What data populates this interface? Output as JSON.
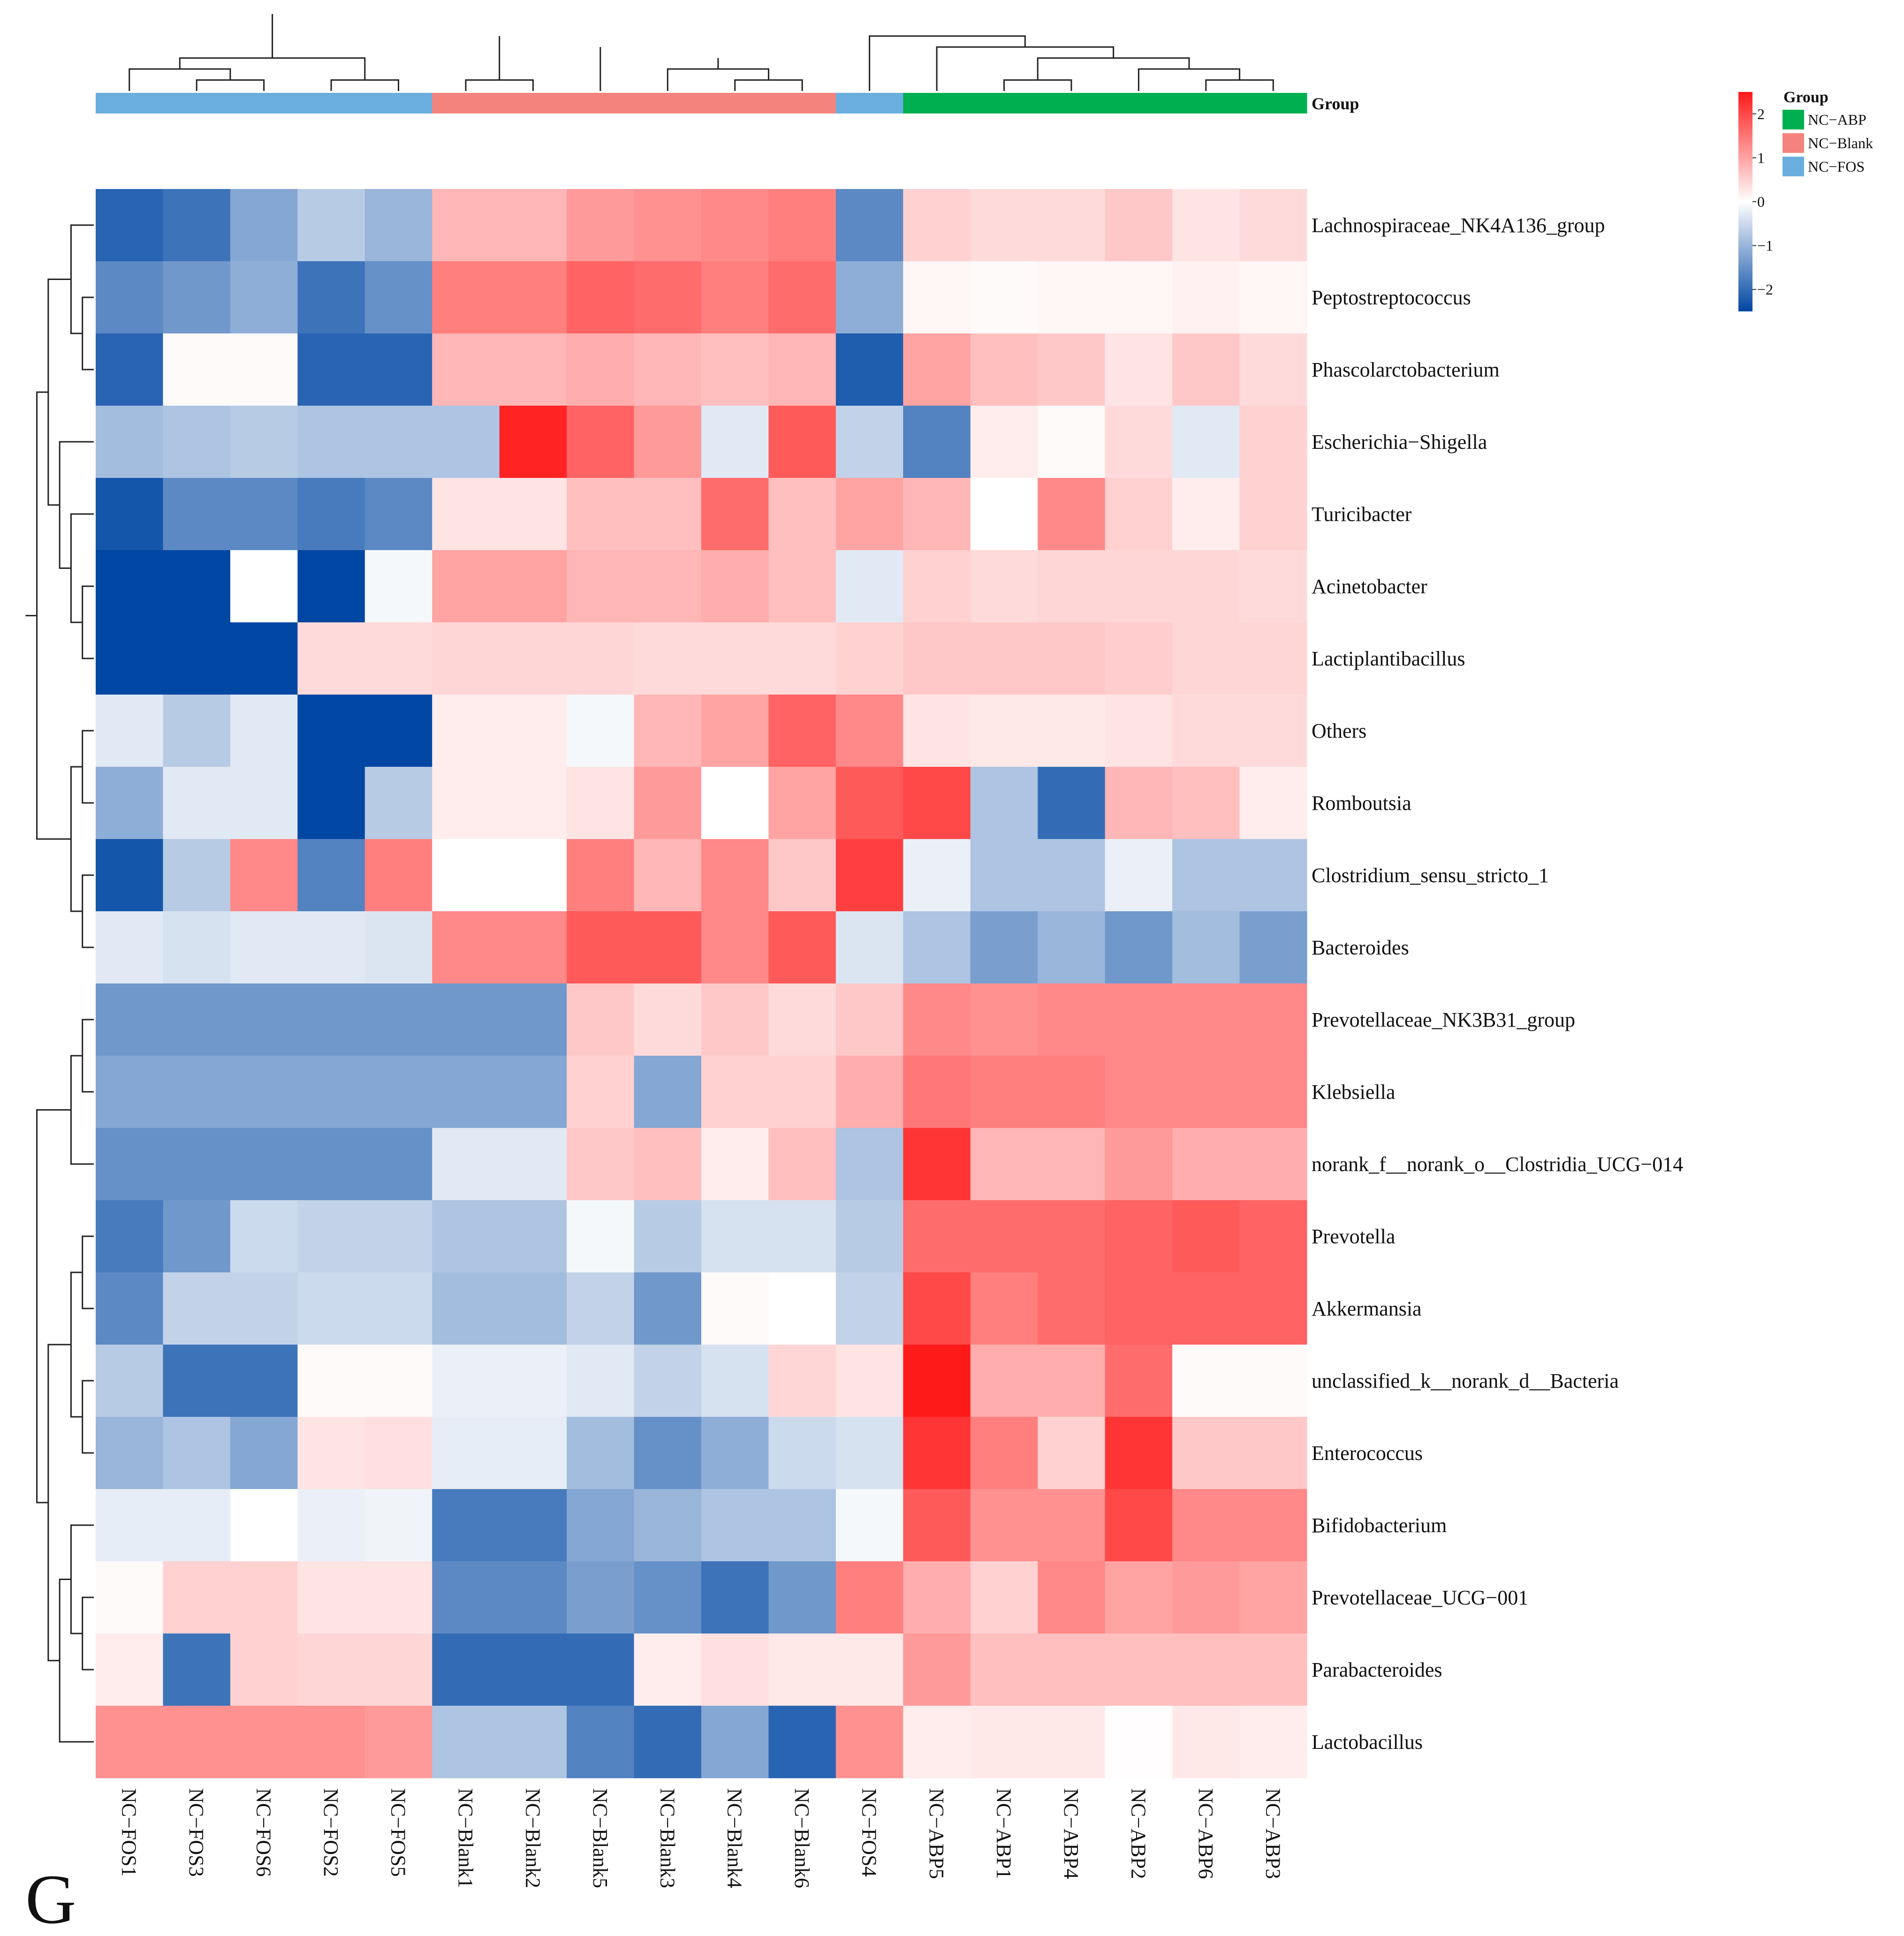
{
  "chart_data": {
    "type": "heatmap",
    "panel_letter": "G",
    "annotation_label": "Group",
    "legend_title": "Group",
    "groups": [
      {
        "name": "NC−ABP",
        "color": "#00b050"
      },
      {
        "name": "NC−Blank",
        "color": "#f4837d"
      },
      {
        "name": "NC−FOS",
        "color": "#6aaee0"
      }
    ],
    "color_scale": {
      "min": -2.5,
      "max": 2.5,
      "ticks": [
        "2",
        "1",
        "0",
        "−1",
        "−2"
      ],
      "tick_values": [
        2,
        1,
        0,
        -1,
        -2
      ],
      "low_color": "#0047a3",
      "mid_color": "#ffffff",
      "high_color": "#ff1a1a"
    },
    "columns": [
      "NC−FOS1",
      "NC−FOS3",
      "NC−FOS6",
      "NC−FOS2",
      "NC−FOS5",
      "NC−Blank1",
      "NC−Blank2",
      "NC−Blank5",
      "NC−Blank3",
      "NC−Blank4",
      "NC−Blank6",
      "NC−FOS4",
      "NC−ABP5",
      "NC−ABP1",
      "NC−ABP4",
      "NC−ABP2",
      "NC−ABP6",
      "NC−ABP3"
    ],
    "column_groups": [
      2,
      2,
      2,
      2,
      2,
      1,
      1,
      1,
      1,
      1,
      1,
      2,
      0,
      0,
      0,
      0,
      0,
      0
    ],
    "rows": [
      "Lachnospiraceae_NK4A136_group",
      "Peptostreptococcus",
      "Phascolarctobacterium",
      "Escherichia−Shigella",
      "Turicibacter",
      "Acinetobacter",
      "Lactiplantibacillus",
      "Others",
      "Romboutsia",
      "Clostridium_sensu_stricto_1",
      "Bacteroides",
      "Prevotellaceae_NK3B31_group",
      "Klebsiella",
      "norank_f__norank_o__Clostridia_UCG−014",
      "Prevotella",
      "Akkermansia",
      "unclassified_k__norank_d__Bacteria",
      "Enterococcus",
      "Bifidobacterium",
      "Prevotellaceae_UCG−001",
      "Parabacteroides",
      "Lactobacillus"
    ],
    "values": [
      [
        -2.1,
        -1.9,
        -1.2,
        -0.7,
        -1.0,
        0.8,
        0.8,
        1.1,
        1.2,
        1.3,
        1.4,
        -1.6,
        0.5,
        0.4,
        0.4,
        0.6,
        0.3,
        0.4
      ],
      [
        -1.6,
        -1.4,
        -1.1,
        -1.9,
        -1.5,
        1.4,
        1.4,
        1.7,
        1.6,
        1.4,
        1.6,
        -1.1,
        0.1,
        0.05,
        0.1,
        0.1,
        0.15,
        0.1
      ],
      [
        -2.1,
        0.05,
        0.05,
        -2.1,
        -2.1,
        0.8,
        0.8,
        0.9,
        0.8,
        0.7,
        0.8,
        -2.2,
        1.0,
        0.7,
        0.6,
        0.3,
        0.6,
        0.4
      ],
      [
        -0.9,
        -0.8,
        -0.7,
        -0.8,
        -0.8,
        -0.8,
        2.4,
        1.7,
        1.1,
        -0.3,
        1.8,
        -0.6,
        -1.7,
        0.2,
        0.05,
        0.4,
        -0.3,
        0.5
      ],
      [
        -2.3,
        -1.6,
        -1.6,
        -1.8,
        -1.6,
        0.3,
        0.3,
        0.7,
        0.7,
        1.6,
        0.7,
        1.0,
        0.8,
        0.0,
        1.3,
        0.5,
        0.2,
        0.5
      ],
      [
        -2.5,
        -2.5,
        0.0,
        -2.5,
        -0.1,
        1.0,
        1.0,
        0.8,
        0.8,
        0.9,
        0.7,
        -0.3,
        0.5,
        0.4,
        0.45,
        0.45,
        0.45,
        0.4
      ],
      [
        -2.5,
        -2.5,
        -2.5,
        0.4,
        0.4,
        0.45,
        0.45,
        0.45,
        0.4,
        0.4,
        0.4,
        0.5,
        0.6,
        0.6,
        0.6,
        0.55,
        0.45,
        0.45
      ],
      [
        -0.3,
        -0.7,
        -0.3,
        -2.5,
        -2.5,
        0.2,
        0.2,
        -0.1,
        0.8,
        1.0,
        1.7,
        1.3,
        0.3,
        0.25,
        0.25,
        0.3,
        0.4,
        0.4
      ],
      [
        -1.1,
        -0.3,
        -0.3,
        -2.5,
        -0.7,
        0.2,
        0.2,
        0.3,
        1.1,
        0.0,
        1.0,
        1.8,
        2.0,
        -0.8,
        -2.0,
        0.8,
        0.7,
        0.2
      ],
      [
        -2.3,
        -0.7,
        1.3,
        -1.7,
        1.4,
        0.0,
        0.0,
        1.4,
        0.8,
        1.3,
        0.6,
        2.1,
        -0.2,
        -0.8,
        -0.8,
        -0.2,
        -0.8,
        -0.8
      ],
      [
        -0.3,
        -0.4,
        -0.3,
        -0.3,
        -0.35,
        1.3,
        1.3,
        1.8,
        1.8,
        1.3,
        1.8,
        -0.35,
        -0.8,
        -1.3,
        -1.0,
        -1.4,
        -0.9,
        -1.3
      ],
      [
        -1.4,
        -1.4,
        -1.4,
        -1.4,
        -1.4,
        -1.4,
        -1.4,
        0.6,
        0.4,
        0.6,
        0.4,
        0.6,
        1.3,
        1.2,
        1.3,
        1.3,
        1.3,
        1.3
      ],
      [
        -1.2,
        -1.2,
        -1.2,
        -1.2,
        -1.2,
        -1.2,
        -1.2,
        0.5,
        -1.2,
        0.5,
        0.5,
        0.9,
        1.5,
        1.4,
        1.4,
        1.3,
        1.3,
        1.3
      ],
      [
        -1.5,
        -1.5,
        -1.5,
        -1.5,
        -1.5,
        -0.3,
        -0.3,
        0.6,
        0.7,
        0.2,
        0.7,
        -0.8,
        2.2,
        0.8,
        0.8,
        1.1,
        0.9,
        0.9
      ],
      [
        -1.8,
        -1.4,
        -0.5,
        -0.6,
        -0.6,
        -0.8,
        -0.8,
        -0.1,
        -0.7,
        -0.4,
        -0.4,
        -0.7,
        1.6,
        1.6,
        1.6,
        1.7,
        1.8,
        1.7
      ],
      [
        -1.6,
        -0.6,
        -0.6,
        -0.5,
        -0.5,
        -0.9,
        -0.9,
        -0.6,
        -1.4,
        0.05,
        0.0,
        -0.6,
        2.0,
        1.4,
        1.6,
        1.7,
        1.7,
        1.7
      ],
      [
        -0.7,
        -1.9,
        -1.9,
        0.05,
        0.05,
        -0.2,
        -0.2,
        -0.3,
        -0.6,
        -0.4,
        0.45,
        0.3,
        2.5,
        0.9,
        0.9,
        1.6,
        0.05,
        0.05
      ],
      [
        -1.0,
        -0.8,
        -1.2,
        0.3,
        0.35,
        -0.25,
        -0.25,
        -0.9,
        -1.5,
        -1.1,
        -0.5,
        -0.4,
        2.2,
        1.4,
        0.5,
        2.2,
        0.6,
        0.6
      ],
      [
        -0.25,
        -0.25,
        0.0,
        -0.2,
        -0.15,
        -1.8,
        -1.8,
        -1.2,
        -1.0,
        -0.8,
        -0.8,
        -0.1,
        1.8,
        1.2,
        1.2,
        2.0,
        1.3,
        1.3
      ],
      [
        0.05,
        0.5,
        0.5,
        0.3,
        0.3,
        -1.6,
        -1.6,
        -1.3,
        -1.5,
        -1.9,
        -1.4,
        1.4,
        0.9,
        0.5,
        1.3,
        1.0,
        1.1,
        1.0
      ],
      [
        0.2,
        -1.9,
        0.5,
        0.45,
        0.45,
        -2.0,
        -2.0,
        -2.0,
        0.2,
        0.35,
        0.25,
        0.25,
        1.1,
        0.7,
        0.7,
        0.7,
        0.7,
        0.7
      ],
      [
        1.2,
        1.2,
        1.2,
        1.2,
        1.1,
        -0.8,
        -0.8,
        -1.7,
        -2.0,
        -1.2,
        -2.1,
        1.2,
        0.2,
        0.25,
        0.25,
        0.02,
        0.25,
        0.2
      ]
    ]
  }
}
